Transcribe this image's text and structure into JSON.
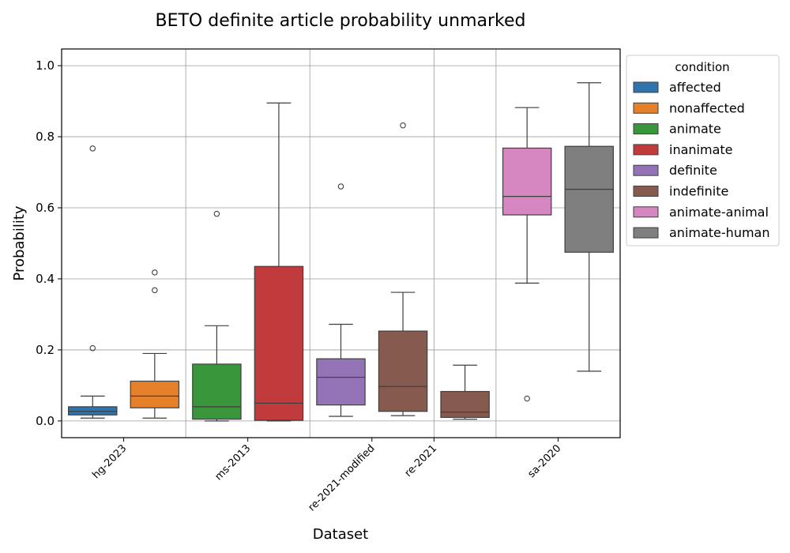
{
  "chart_data": {
    "type": "box",
    "title": "BETO definite article probability unmarked",
    "xlabel": "Dataset",
    "ylabel": "Probability",
    "ylim": [
      -0.047,
      1.047
    ],
    "yticks": [
      0.0,
      0.2,
      0.4,
      0.6,
      0.8,
      1.0
    ],
    "ytick_labels": [
      "0.0",
      "0.2",
      "0.4",
      "0.6",
      "0.8",
      "1.0"
    ],
    "grid": true,
    "legend_placement": "outside-top-right",
    "legend_title": "condition",
    "categories": [
      "hg-2023",
      "ms-2013",
      "re-2021-modified",
      "re-2021",
      "sa-2020"
    ],
    "conditions": [
      {
        "name": "affected",
        "color": "#2f74ad"
      },
      {
        "name": "nonaffected",
        "color": "#e6812b"
      },
      {
        "name": "animate",
        "color": "#3a963a"
      },
      {
        "name": "inanimate",
        "color": "#c13b3c"
      },
      {
        "name": "definite",
        "color": "#9373b5"
      },
      {
        "name": "indefinite",
        "color": "#875a50"
      },
      {
        "name": "animate-animal",
        "color": "#d686c0"
      },
      {
        "name": "animate-human",
        "color": "#7f7f7f"
      }
    ],
    "boxes": [
      {
        "condition": "affected",
        "whisker_low": 0.008,
        "q1": 0.017,
        "median": 0.027,
        "q3": 0.04,
        "whisker_high": 0.07,
        "outliers": [
          0.205,
          0.767
        ]
      },
      {
        "condition": "nonaffected",
        "whisker_low": 0.008,
        "q1": 0.037,
        "median": 0.07,
        "q3": 0.112,
        "whisker_high": 0.19,
        "outliers": [
          0.368,
          0.418
        ]
      },
      {
        "condition": "animate",
        "whisker_low": 0.0,
        "q1": 0.005,
        "median": 0.04,
        "q3": 0.16,
        "whisker_high": 0.268,
        "outliers": [
          0.583
        ]
      },
      {
        "condition": "inanimate",
        "whisker_low": 0.0,
        "q1": 0.002,
        "median": 0.05,
        "q3": 0.435,
        "whisker_high": 0.895,
        "outliers": []
      },
      {
        "condition": "definite",
        "whisker_low": 0.013,
        "q1": 0.045,
        "median": 0.123,
        "q3": 0.175,
        "whisker_high": 0.272,
        "outliers": [
          0.66
        ]
      },
      {
        "condition": "indefinite",
        "whisker_low": 0.015,
        "q1": 0.027,
        "median": 0.097,
        "q3": 0.253,
        "whisker_high": 0.362,
        "outliers": [
          0.832
        ]
      },
      {
        "condition": "indefinite",
        "whisker_low": 0.005,
        "q1": 0.01,
        "median": 0.025,
        "q3": 0.083,
        "whisker_high": 0.157,
        "outliers": []
      },
      {
        "condition": "animate-animal",
        "whisker_low": 0.388,
        "q1": 0.58,
        "median": 0.632,
        "q3": 0.768,
        "whisker_high": 0.882,
        "outliers": [
          0.063
        ]
      },
      {
        "condition": "animate-human",
        "whisker_low": 0.14,
        "q1": 0.475,
        "median": 0.652,
        "q3": 0.773,
        "whisker_high": 0.952,
        "outliers": []
      }
    ]
  }
}
